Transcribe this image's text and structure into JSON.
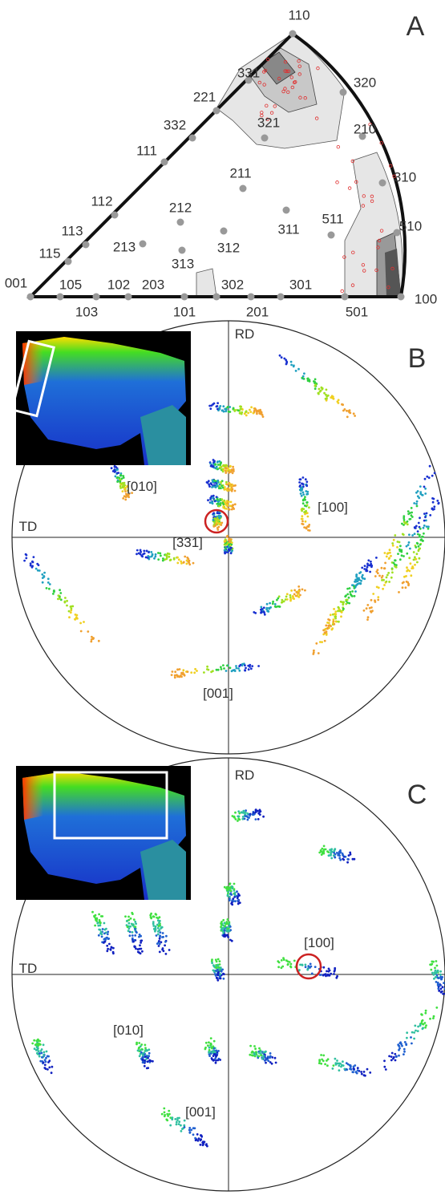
{
  "panel_a": {
    "label": "A",
    "directions": [
      "110",
      "331",
      "320",
      "221",
      "321",
      "332",
      "210",
      "111",
      "211",
      "310",
      "112",
      "212",
      "113",
      "311",
      "511",
      "510",
      "115",
      "213",
      "312",
      "313",
      "001",
      "105",
      "102",
      "203",
      "302",
      "301",
      "100",
      "103",
      "101",
      "201",
      "501"
    ]
  },
  "panel_b": {
    "label": "B",
    "axes": [
      "RD",
      "TD"
    ],
    "annotations": [
      "[010]",
      "[331]",
      "[100]",
      "[001]"
    ]
  },
  "panel_c": {
    "label": "C",
    "axes": [
      "RD",
      "TD"
    ],
    "annotations": [
      "[010]",
      "[100]",
      "[001]"
    ]
  }
}
